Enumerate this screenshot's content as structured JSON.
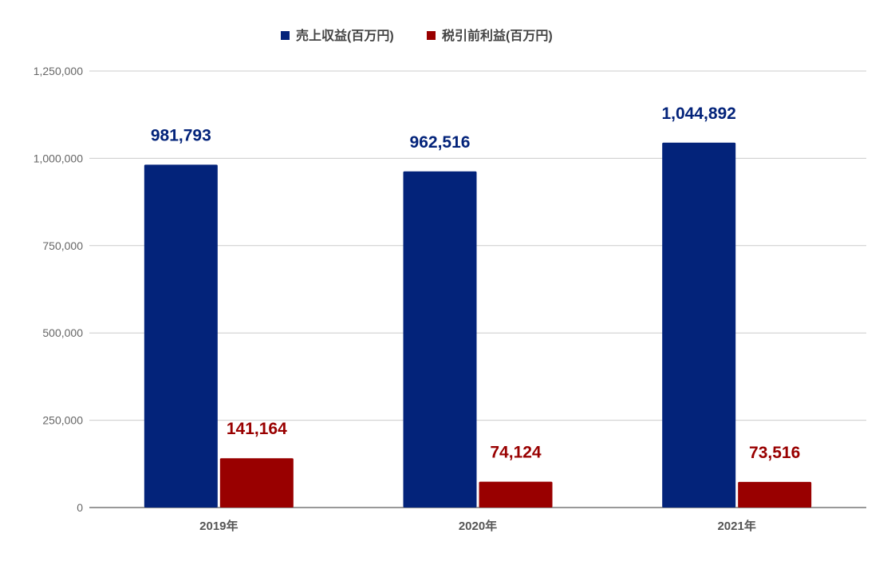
{
  "chart_data": {
    "type": "bar",
    "title": "",
    "xlabel": "",
    "ylabel": "",
    "categories": [
      "2019年",
      "2020年",
      "2021年"
    ],
    "series": [
      {
        "name": "売上収益(百万円)",
        "color": "#03237A",
        "values": [
          981793,
          962516,
          1044892
        ],
        "labels": [
          "981,793",
          "962,516",
          "1,044,892"
        ]
      },
      {
        "name": "税引前利益(百万円)",
        "color": "#990000",
        "values": [
          141164,
          74124,
          73516
        ],
        "labels": [
          "141,164",
          "74,124",
          "73,516"
        ]
      }
    ],
    "ylim": [
      0,
      1250000
    ],
    "yticks": [
      0,
      250000,
      500000,
      750000,
      1000000,
      1250000
    ],
    "ytick_labels": [
      "0",
      "250,000",
      "500,000",
      "750,000",
      "1,000,000",
      "1,250,000"
    ],
    "grid": true,
    "legend_position": "top"
  }
}
